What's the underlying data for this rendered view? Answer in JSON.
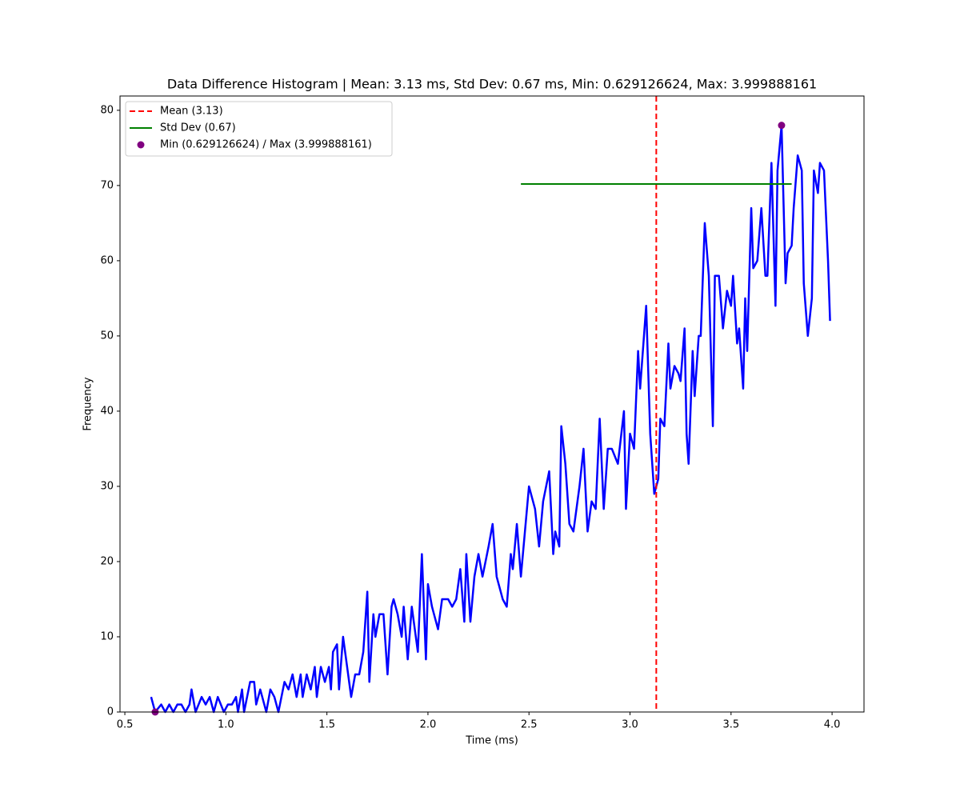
{
  "chart_data": {
    "type": "line",
    "title": "Data Difference Histogram | Mean: 3.13 ms, Std Dev: 0.67 ms, Min: 0.629126624, Max: 3.999888161",
    "x_label": "Time (ms)",
    "y_label": "Frequency",
    "xlim": [
      0.476,
      4.158
    ],
    "ylim": [
      0,
      81.9
    ],
    "xticks": [
      0.5,
      {
        "value": 1.0,
        "label": "1.0"
      },
      1.5,
      {
        "value": 2.0,
        "label": "2.0"
      },
      2.5,
      {
        "value": 3.0,
        "label": "3.0"
      },
      3.5,
      {
        "value": 4.0,
        "label": "4.0"
      }
    ],
    "yticks": [
      0,
      10,
      20,
      30,
      40,
      50,
      60,
      70,
      80
    ],
    "legend": "upper left",
    "series": [
      {
        "name": null,
        "color": "#0000ff",
        "x": [
          0.63,
          0.65,
          0.68,
          0.7,
          0.72,
          0.74,
          0.76,
          0.78,
          0.8,
          0.82,
          0.83,
          0.85,
          0.88,
          0.9,
          0.92,
          0.94,
          0.96,
          0.99,
          1.01,
          1.03,
          1.05,
          1.06,
          1.08,
          1.09,
          1.12,
          1.14,
          1.15,
          1.17,
          1.19,
          1.2,
          1.22,
          1.24,
          1.26,
          1.29,
          1.31,
          1.33,
          1.35,
          1.37,
          1.38,
          1.4,
          1.42,
          1.44,
          1.45,
          1.47,
          1.49,
          1.51,
          1.52,
          1.53,
          1.55,
          1.56,
          1.58,
          1.6,
          1.62,
          1.64,
          1.66,
          1.68,
          1.7,
          1.71,
          1.73,
          1.74,
          1.76,
          1.78,
          1.8,
          1.82,
          1.83,
          1.85,
          1.87,
          1.88,
          1.9,
          1.92,
          1.94,
          1.95,
          1.97,
          1.99,
          2.0,
          2.02,
          2.05,
          2.07,
          2.1,
          2.12,
          2.14,
          2.16,
          2.18,
          2.19,
          2.21,
          2.23,
          2.25,
          2.27,
          2.3,
          2.32,
          2.34,
          2.37,
          2.39,
          2.41,
          2.42,
          2.44,
          2.46,
          2.48,
          2.5,
          2.53,
          2.55,
          2.57,
          2.6,
          2.62,
          2.63,
          2.65,
          2.66,
          2.68,
          2.7,
          2.72,
          2.75,
          2.77,
          2.79,
          2.81,
          2.83,
          2.85,
          2.87,
          2.89,
          2.91,
          2.94,
          2.97,
          2.98,
          3.0,
          3.02,
          3.04,
          3.05,
          3.08,
          3.1,
          3.12,
          3.14,
          3.15,
          3.17,
          3.19,
          3.2,
          3.22,
          3.24,
          3.25,
          3.27,
          3.28,
          3.29,
          3.31,
          3.32,
          3.34,
          3.35,
          3.37,
          3.39,
          3.41,
          3.42,
          3.44,
          3.46,
          3.48,
          3.5,
          3.51,
          3.53,
          3.54,
          3.56,
          3.57,
          3.58,
          3.6,
          3.61,
          3.63,
          3.65,
          3.67,
          3.68,
          3.7,
          3.72,
          3.73,
          3.75,
          3.77,
          3.78,
          3.8,
          3.81,
          3.83,
          3.85,
          3.86,
          3.88,
          3.9,
          3.91,
          3.93,
          3.94,
          3.96,
          3.98,
          3.99
        ],
        "values": [
          2,
          0,
          1,
          0,
          1,
          0,
          1,
          1,
          0,
          1,
          3,
          0,
          2,
          1,
          2,
          0,
          2,
          0,
          1,
          1,
          2,
          0,
          3,
          0,
          4,
          4,
          1,
          3,
          1,
          0,
          3,
          2,
          0,
          4,
          3,
          5,
          2,
          5,
          2,
          5,
          3,
          6,
          2,
          6,
          4,
          6,
          3,
          8,
          9,
          3,
          10,
          6,
          2,
          5,
          5,
          8,
          16,
          4,
          13,
          10,
          13,
          13,
          5,
          14,
          15,
          13,
          10,
          14,
          7,
          14,
          10,
          8,
          21,
          7,
          17,
          14,
          11,
          15,
          15,
          14,
          15,
          19,
          12,
          21,
          12,
          18,
          21,
          18,
          22,
          25,
          18,
          15,
          14,
          21,
          19,
          25,
          18,
          24,
          30,
          27,
          22,
          28,
          32,
          21,
          24,
          22,
          38,
          33,
          25,
          24,
          30,
          35,
          24,
          28,
          27,
          39,
          27,
          35,
          35,
          33,
          40,
          27,
          37,
          35,
          48,
          43,
          54,
          37,
          29,
          31,
          39,
          38,
          49,
          43,
          46,
          45,
          44,
          51,
          37,
          33,
          48,
          42,
          50,
          50,
          65,
          58,
          38,
          58,
          58,
          51,
          56,
          54,
          58,
          49,
          51,
          43,
          55,
          48,
          67,
          59,
          60,
          67,
          58,
          58,
          73,
          54,
          72,
          78,
          57,
          61,
          62,
          67,
          74,
          72,
          57,
          50,
          55,
          72,
          69,
          73,
          72,
          60,
          52
        ]
      }
    ],
    "mean_line": {
      "name": "Mean (3.13)",
      "x": 3.13,
      "color": "#ff0000"
    },
    "std_line": {
      "name": "Std Dev (0.67)",
      "y": 70.2,
      "xmin": 2.46,
      "xmax": 3.8,
      "color": "#008000"
    },
    "extremes": {
      "name": "Min (0.629126624) / Max (3.999888161)",
      "color": "#800080",
      "x": [
        0.65,
        3.75
      ],
      "values": [
        0,
        78
      ]
    }
  }
}
